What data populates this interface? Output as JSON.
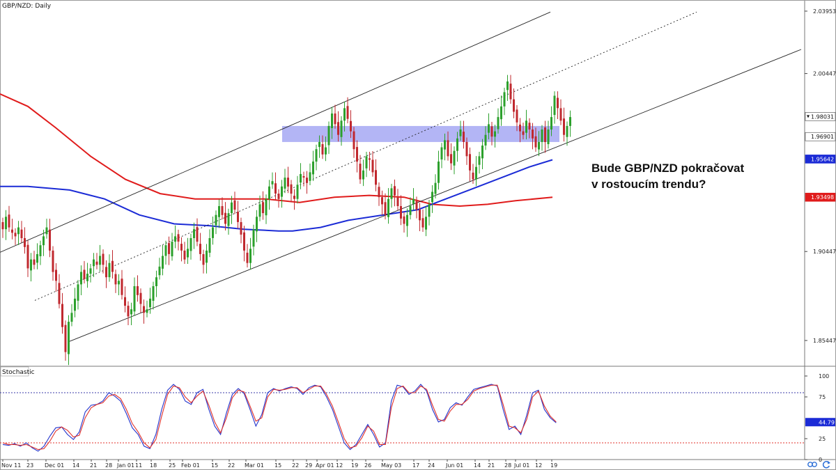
{
  "window": {
    "title": "GBP/NZD: Daily",
    "sub_title": "Stochastic"
  },
  "annotation": {
    "line1": "Bude GBP/NZD pokračovat",
    "line2": "v rostoucím trendu?"
  },
  "colors": {
    "bull": "#2ca02c",
    "bear": "#c0282e",
    "ma_red": "#e01b1b",
    "ma_blue": "#1b2bd6",
    "zone": "#9a9cf2",
    "stoch_k": "#2233cc",
    "stoch_d": "#e0302a",
    "grid": "#dddddd"
  },
  "icons": [
    "link-icon",
    "refresh-icon"
  ],
  "chart_data": [
    {
      "type": "candlestick",
      "title": "GBP/NZD: Daily",
      "ylim": [
        1.84,
        2.045
      ],
      "yticks": [
        {
          "value": 2.03953,
          "label": "2.03953"
        },
        {
          "value": 2.00447,
          "label": "2.00447"
        },
        {
          "value": 1.90447,
          "label": "1.90447"
        },
        {
          "value": 1.85447,
          "label": "1.85447"
        }
      ],
      "price_badges": [
        {
          "value": 1.98031,
          "label": "1.98031",
          "style": "last"
        },
        {
          "value": 1.96901,
          "label": "1.96901",
          "style": "plain"
        },
        {
          "value": 1.95642,
          "label": "1.95642",
          "style": "blue"
        },
        {
          "value": 1.93498,
          "label": "1.93498",
          "style": "red"
        }
      ],
      "x_labels": [
        "Nov 11",
        "23",
        "Dec 01",
        "14",
        "21",
        "28",
        "Jan 01",
        "11",
        "18",
        "25",
        "Feb 01",
        "15",
        "22",
        "Mar 01",
        "15",
        "22",
        "29",
        "Apr 01",
        "12",
        "19",
        "26",
        "May 03",
        "17",
        "24",
        "Jun 01",
        "14",
        "21",
        "28",
        "Jul 01",
        "12",
        "19"
      ],
      "closes": [
        1.917,
        1.924,
        1.918,
        1.915,
        1.913,
        1.918,
        1.912,
        1.907,
        1.895,
        1.9,
        1.897,
        1.903,
        1.908,
        1.913,
        1.918,
        1.905,
        1.893,
        1.888,
        1.875,
        1.862,
        1.848,
        1.865,
        1.87,
        1.878,
        1.886,
        1.893,
        1.889,
        1.892,
        1.895,
        1.9,
        1.897,
        1.902,
        1.897,
        1.89,
        1.898,
        1.893,
        1.886,
        1.888,
        1.88,
        1.874,
        1.868,
        1.872,
        1.885,
        1.88,
        1.875,
        1.87,
        1.872,
        1.878,
        1.885,
        1.89,
        1.896,
        1.902,
        1.908,
        1.903,
        1.91,
        1.913,
        1.91,
        1.905,
        1.9,
        1.906,
        1.912,
        1.917,
        1.91,
        1.903,
        1.897,
        1.905,
        1.912,
        1.918,
        1.925,
        1.93,
        1.925,
        1.92,
        1.926,
        1.932,
        1.928,
        1.921,
        1.914,
        1.905,
        1.898,
        1.906,
        1.917,
        1.924,
        1.931,
        1.926,
        1.934,
        1.941,
        1.944,
        1.937,
        1.934,
        1.941,
        1.946,
        1.941,
        1.937,
        1.934,
        1.942,
        1.948,
        1.946,
        1.943,
        1.949,
        1.955,
        1.962,
        1.966,
        1.959,
        1.963,
        1.975,
        1.982,
        1.976,
        1.97,
        1.978,
        1.985,
        1.979,
        1.972,
        1.962,
        1.955,
        1.945,
        1.95,
        1.958,
        1.956,
        1.949,
        1.942,
        1.935,
        1.931,
        1.925,
        1.934,
        1.94,
        1.936,
        1.93,
        1.923,
        1.92,
        1.925,
        1.93,
        1.934,
        1.928,
        1.922,
        1.918,
        1.924,
        1.931,
        1.938,
        1.943,
        1.955,
        1.963,
        1.967,
        1.958,
        1.954,
        1.961,
        1.968,
        1.973,
        1.966,
        1.958,
        1.95,
        1.945,
        1.952,
        1.958,
        1.964,
        1.97,
        1.976,
        1.969,
        1.972,
        1.98,
        1.986,
        1.994,
        2.0,
        1.99,
        1.983,
        1.977,
        1.972,
        1.97,
        1.978,
        1.973,
        1.968,
        1.963,
        1.966,
        1.973,
        1.966,
        1.973,
        1.98,
        1.992,
        1.985,
        1.978,
        1.97,
        1.975,
        1.98
      ],
      "series": [
        {
          "name": "",
          "kind": "ma",
          "color": "#e01b1b",
          "points": [
            [
              0,
              1.993
            ],
            [
              40,
              1.986
            ],
            [
              80,
              1.974
            ],
            [
              130,
              1.958
            ],
            [
              180,
              1.945
            ],
            [
              230,
              1.937
            ],
            [
              280,
              1.934
            ],
            [
              330,
              1.934
            ],
            [
              380,
              1.934
            ],
            [
              430,
              1.932
            ],
            [
              480,
              1.935
            ],
            [
              530,
              1.936
            ],
            [
              580,
              1.935
            ],
            [
              620,
              1.931
            ],
            [
              660,
              1.93
            ],
            [
              700,
              1.931
            ],
            [
              740,
              1.933
            ],
            [
              793,
              1.935
            ]
          ]
        },
        {
          "name": "",
          "kind": "ma",
          "color": "#1b2bd6",
          "points": [
            [
              0,
              1.941
            ],
            [
              40,
              1.941
            ],
            [
              100,
              1.939
            ],
            [
              150,
              1.934
            ],
            [
              200,
              1.925
            ],
            [
              250,
              1.92
            ],
            [
              300,
              1.919
            ],
            [
              350,
              1.917
            ],
            [
              400,
              1.916
            ],
            [
              420,
              1.916
            ],
            [
              460,
              1.918
            ],
            [
              500,
              1.922
            ],
            [
              550,
              1.925
            ],
            [
              600,
              1.928
            ],
            [
              640,
              1.934
            ],
            [
              680,
              1.94
            ],
            [
              720,
              1.946
            ],
            [
              760,
              1.952
            ],
            [
              793,
              1.956
            ]
          ]
        }
      ],
      "channel": [
        {
          "style": "solid",
          "points": [
            [
              0,
              1.904
            ],
            [
              790,
              2.039
            ]
          ]
        },
        {
          "style": "dotted",
          "points": [
            [
              50,
              1.877
            ],
            [
              1000,
              2.039
            ]
          ]
        },
        {
          "style": "solid",
          "points": [
            [
              100,
              1.854
            ],
            [
              1150,
              2.018
            ]
          ]
        }
      ],
      "zone": {
        "x_start": 405,
        "x_end": 803,
        "y_low": 1.966,
        "y_high": 1.975
      }
    },
    {
      "type": "line",
      "title": "Stochastic",
      "ylim": [
        0,
        100
      ],
      "levels": [
        80,
        20
      ],
      "yticks": [
        {
          "value": 100,
          "label": "100"
        },
        {
          "value": 75,
          "label": "75"
        },
        {
          "value": 25,
          "label": "25"
        },
        {
          "value": 0,
          "label": "0"
        }
      ],
      "current": {
        "value": 44.79,
        "label": "44.79"
      },
      "series": [
        {
          "name": "",
          "color": "#2233cc",
          "values": [
            18,
            17,
            19,
            16,
            20,
            14,
            10,
            16,
            28,
            38,
            39,
            30,
            24,
            33,
            57,
            65,
            66,
            70,
            80,
            76,
            70,
            55,
            38,
            30,
            16,
            13,
            30,
            60,
            83,
            90,
            84,
            70,
            66,
            80,
            84,
            60,
            40,
            30,
            56,
            78,
            85,
            79,
            60,
            40,
            54,
            80,
            85,
            82,
            85,
            87,
            85,
            78,
            86,
            89,
            87,
            75,
            60,
            40,
            20,
            12,
            18,
            30,
            42,
            30,
            15,
            20,
            70,
            89,
            87,
            78,
            82,
            90,
            82,
            60,
            45,
            48,
            62,
            68,
            65,
            75,
            84,
            86,
            88,
            90,
            88,
            60,
            36,
            40,
            30,
            53,
            80,
            83,
            60,
            50,
            44
          ]
        },
        {
          "name": "",
          "color": "#e0302a",
          "values": [
            20,
            18,
            18,
            17,
            18,
            15,
            12,
            13,
            22,
            34,
            39,
            35,
            27,
            29,
            50,
            62,
            66,
            68,
            76,
            78,
            73,
            60,
            43,
            33,
            20,
            14,
            24,
            52,
            78,
            88,
            86,
            75,
            68,
            76,
            82,
            65,
            45,
            32,
            50,
            74,
            83,
            81,
            64,
            46,
            50,
            75,
            84,
            83,
            84,
            86,
            86,
            80,
            84,
            88,
            88,
            78,
            64,
            45,
            25,
            14,
            16,
            26,
            40,
            34,
            18,
            18,
            62,
            85,
            88,
            80,
            80,
            88,
            84,
            65,
            48,
            46,
            58,
            66,
            66,
            72,
            82,
            85,
            87,
            89,
            89,
            66,
            40,
            38,
            32,
            48,
            75,
            82,
            64,
            52,
            45
          ]
        }
      ]
    }
  ]
}
